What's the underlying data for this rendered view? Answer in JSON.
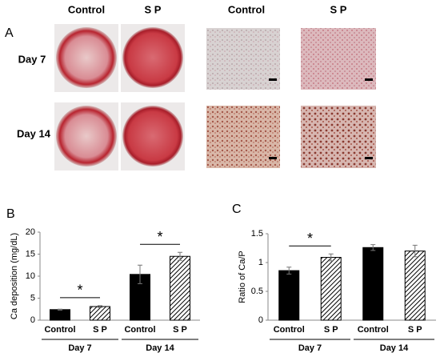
{
  "panel_a": {
    "label": "A",
    "columns": [
      "Control",
      "S P",
      "Control",
      "S P"
    ],
    "rows": [
      "Day 7",
      "Day 14"
    ]
  },
  "chart_data": [
    {
      "type": "bar",
      "panel_label": "B",
      "ylabel": "Ca deposition (mg/dL)",
      "categories": [
        "Day 7",
        "Day 14"
      ],
      "series": [
        {
          "name": "Control",
          "color": "#000000",
          "pattern": "solid",
          "values": [
            2.4,
            10.4
          ],
          "errors": [
            0.1,
            2.1
          ]
        },
        {
          "name": "S P",
          "color": "#000000",
          "pattern": "hatch",
          "values": [
            3.1,
            14.5
          ],
          "errors": [
            0.2,
            0.9
          ]
        }
      ],
      "significance": [
        "*",
        "*"
      ],
      "ylim": [
        0,
        20
      ],
      "yticks": [
        0,
        5,
        10,
        15,
        20
      ]
    },
    {
      "type": "bar",
      "panel_label": "C",
      "ylabel": "Ratio of Ca/P",
      "categories": [
        "Day 7",
        "Day 14"
      ],
      "series": [
        {
          "name": "Control",
          "color": "#000000",
          "pattern": "solid",
          "values": [
            0.86,
            1.26
          ],
          "errors": [
            0.06,
            0.05
          ]
        },
        {
          "name": "S P",
          "color": "#000000",
          "pattern": "hatch",
          "values": [
            1.09,
            1.2
          ],
          "errors": [
            0.06,
            0.1
          ]
        }
      ],
      "significance": [
        "*",
        null
      ],
      "ylim": [
        0,
        1.5
      ],
      "yticks": [
        0,
        0.5,
        1,
        1.5
      ]
    }
  ]
}
